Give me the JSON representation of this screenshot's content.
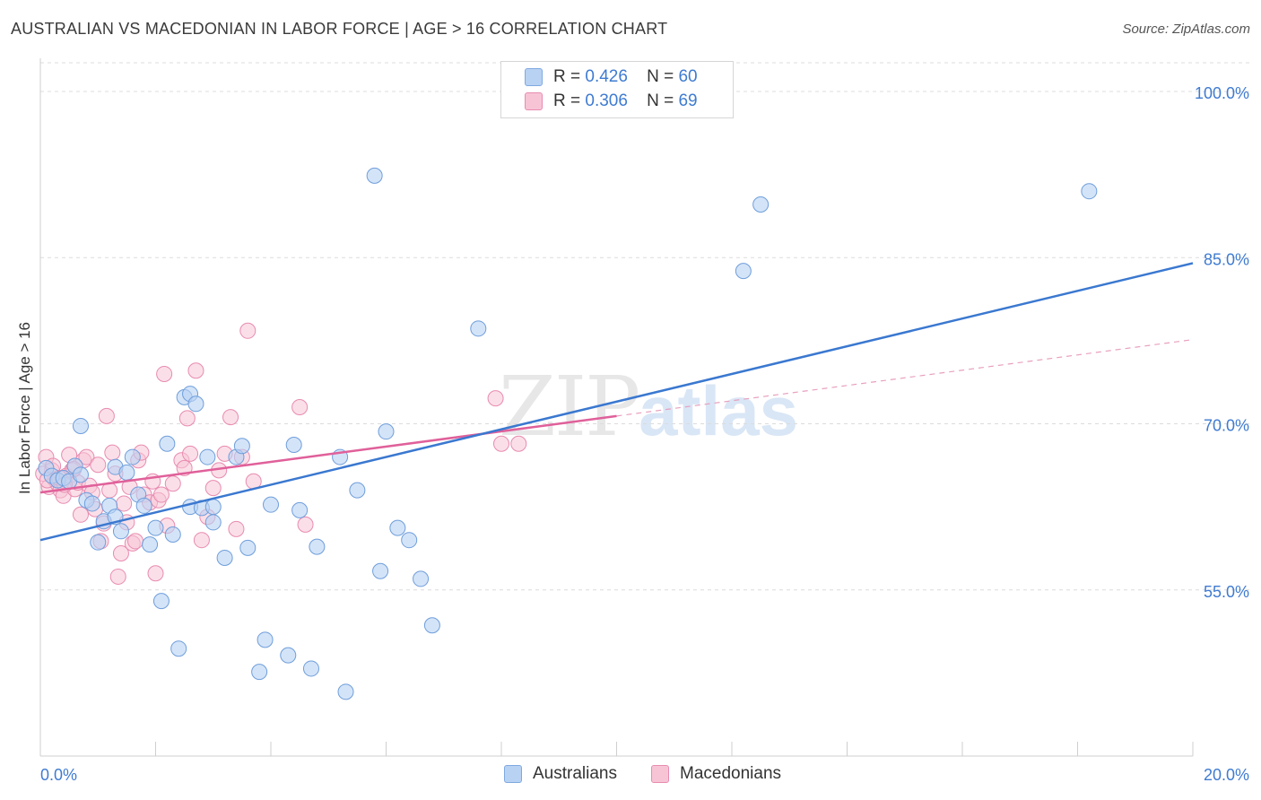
{
  "header": {
    "title": "AUSTRALIAN VS MACEDONIAN IN LABOR FORCE | AGE > 16 CORRELATION CHART",
    "source": "Source: ZipAtlas.com"
  },
  "legend": {
    "australians": {
      "r_label": "R =",
      "r_value": "0.426",
      "n_label": "N =",
      "n_value": "60"
    },
    "macedonians": {
      "r_label": "R =",
      "r_value": "0.306",
      "n_label": "N =",
      "n_value": "69"
    }
  },
  "bottom_legend": {
    "australians": "Australians",
    "macedonians": "Macedonians"
  },
  "watermark": {
    "zip": "ZIP",
    "atlas": "atlas"
  },
  "colors": {
    "blue": "#3a78d0",
    "blue_fill": "#b8d2f3",
    "pink": "#e0609a",
    "pink_fill": "#f7c4d6",
    "axis_text": "#3f7bd1",
    "grid": "#dcdcdc"
  },
  "chart_data": {
    "type": "scatter",
    "title": "AUSTRALIAN VS MACEDONIAN IN LABOR FORCE | AGE > 16 CORRELATION CHART",
    "xlabel": "",
    "ylabel": "In Labor Force | Age > 16",
    "xlim": [
      0,
      20
    ],
    "ylim": [
      40,
      103
    ],
    "x_tick_labels": [
      "0.0%",
      "20.0%"
    ],
    "y_ticks": [
      55,
      70,
      85,
      100
    ],
    "y_tick_labels": [
      "55.0%",
      "70.0%",
      "85.0%",
      "100.0%"
    ],
    "grid": "horizontal dashed",
    "series": [
      {
        "name": "Australians",
        "color": "#3a78d0",
        "trend": {
          "x": [
            0,
            20
          ],
          "y": [
            59.5,
            84.5
          ]
        },
        "points": [
          [
            0.1,
            66.0
          ],
          [
            0.2,
            65.3
          ],
          [
            0.3,
            64.9
          ],
          [
            0.4,
            65.1
          ],
          [
            0.5,
            64.8
          ],
          [
            0.6,
            66.2
          ],
          [
            0.7,
            65.4
          ],
          [
            0.7,
            69.8
          ],
          [
            0.8,
            63.1
          ],
          [
            0.9,
            62.8
          ],
          [
            1.0,
            59.3
          ],
          [
            1.1,
            61.2
          ],
          [
            1.2,
            62.6
          ],
          [
            1.3,
            61.6
          ],
          [
            1.3,
            66.1
          ],
          [
            1.4,
            60.3
          ],
          [
            1.5,
            65.6
          ],
          [
            1.6,
            67.0
          ],
          [
            1.7,
            63.6
          ],
          [
            1.8,
            62.6
          ],
          [
            1.9,
            59.1
          ],
          [
            2.0,
            60.6
          ],
          [
            2.1,
            54.0
          ],
          [
            2.2,
            68.2
          ],
          [
            2.3,
            60.0
          ],
          [
            2.4,
            49.7
          ],
          [
            2.5,
            72.4
          ],
          [
            2.6,
            72.7
          ],
          [
            2.6,
            62.5
          ],
          [
            2.7,
            71.8
          ],
          [
            2.8,
            62.4
          ],
          [
            2.9,
            67.0
          ],
          [
            3.0,
            62.5
          ],
          [
            3.0,
            61.1
          ],
          [
            3.2,
            57.9
          ],
          [
            3.4,
            67.0
          ],
          [
            3.5,
            68.0
          ],
          [
            3.6,
            58.8
          ],
          [
            3.8,
            47.6
          ],
          [
            3.9,
            50.5
          ],
          [
            4.0,
            62.7
          ],
          [
            4.3,
            49.1
          ],
          [
            4.4,
            68.1
          ],
          [
            4.5,
            62.2
          ],
          [
            4.7,
            47.9
          ],
          [
            4.8,
            58.9
          ],
          [
            5.2,
            67.0
          ],
          [
            5.3,
            45.8
          ],
          [
            5.5,
            64.0
          ],
          [
            5.8,
            92.4
          ],
          [
            5.9,
            56.7
          ],
          [
            6.0,
            69.3
          ],
          [
            6.2,
            60.6
          ],
          [
            6.4,
            59.5
          ],
          [
            6.6,
            56.0
          ],
          [
            6.8,
            51.8
          ],
          [
            7.6,
            78.6
          ],
          [
            12.2,
            83.8
          ],
          [
            12.5,
            89.8
          ],
          [
            18.2,
            91.0
          ]
        ]
      },
      {
        "name": "Macedonians",
        "color": "#e0609a",
        "trend": {
          "x": [
            0,
            10
          ],
          "y": [
            63.8,
            70.7
          ]
        },
        "trend_ext": {
          "x": [
            10,
            20
          ],
          "y": [
            70.7,
            77.6
          ]
        },
        "points": [
          [
            0.1,
            67.0
          ],
          [
            0.15,
            64.3
          ],
          [
            0.2,
            65.8
          ],
          [
            0.25,
            65.0
          ],
          [
            0.3,
            64.6
          ],
          [
            0.35,
            64.0
          ],
          [
            0.4,
            63.5
          ],
          [
            0.45,
            65.3
          ],
          [
            0.5,
            67.2
          ],
          [
            0.55,
            65.8
          ],
          [
            0.6,
            64.1
          ],
          [
            0.65,
            64.7
          ],
          [
            0.7,
            61.8
          ],
          [
            0.75,
            66.7
          ],
          [
            0.8,
            67.0
          ],
          [
            0.85,
            64.4
          ],
          [
            0.9,
            63.8
          ],
          [
            0.95,
            62.3
          ],
          [
            1.0,
            66.3
          ],
          [
            1.05,
            59.4
          ],
          [
            1.1,
            61.0
          ],
          [
            1.15,
            70.7
          ],
          [
            1.2,
            64.0
          ],
          [
            1.25,
            67.4
          ],
          [
            1.3,
            65.5
          ],
          [
            1.35,
            56.2
          ],
          [
            1.4,
            58.3
          ],
          [
            1.45,
            62.8
          ],
          [
            1.5,
            61.1
          ],
          [
            1.55,
            64.3
          ],
          [
            1.6,
            59.2
          ],
          [
            1.65,
            59.4
          ],
          [
            1.7,
            66.7
          ],
          [
            1.75,
            67.4
          ],
          [
            1.8,
            63.6
          ],
          [
            1.9,
            62.9
          ],
          [
            1.95,
            64.8
          ],
          [
            2.0,
            56.5
          ],
          [
            2.05,
            63.1
          ],
          [
            2.1,
            63.6
          ],
          [
            2.15,
            74.5
          ],
          [
            2.2,
            60.8
          ],
          [
            2.3,
            64.6
          ],
          [
            2.45,
            66.7
          ],
          [
            2.5,
            66.0
          ],
          [
            2.55,
            70.5
          ],
          [
            2.6,
            67.3
          ],
          [
            2.7,
            74.8
          ],
          [
            2.8,
            59.5
          ],
          [
            2.9,
            61.6
          ],
          [
            3.0,
            64.2
          ],
          [
            3.1,
            65.8
          ],
          [
            3.2,
            67.3
          ],
          [
            3.3,
            70.6
          ],
          [
            3.4,
            60.5
          ],
          [
            3.5,
            67.0
          ],
          [
            3.6,
            78.4
          ],
          [
            3.7,
            64.8
          ],
          [
            4.5,
            71.5
          ],
          [
            4.6,
            60.9
          ],
          [
            7.9,
            72.3
          ],
          [
            8.0,
            68.2
          ],
          [
            8.3,
            68.2
          ],
          [
            0.05,
            65.5
          ],
          [
            0.12,
            64.9
          ],
          [
            0.22,
            66.2
          ],
          [
            0.33,
            65.1
          ],
          [
            0.42,
            64.5
          ],
          [
            0.58,
            65.9
          ]
        ]
      }
    ]
  }
}
